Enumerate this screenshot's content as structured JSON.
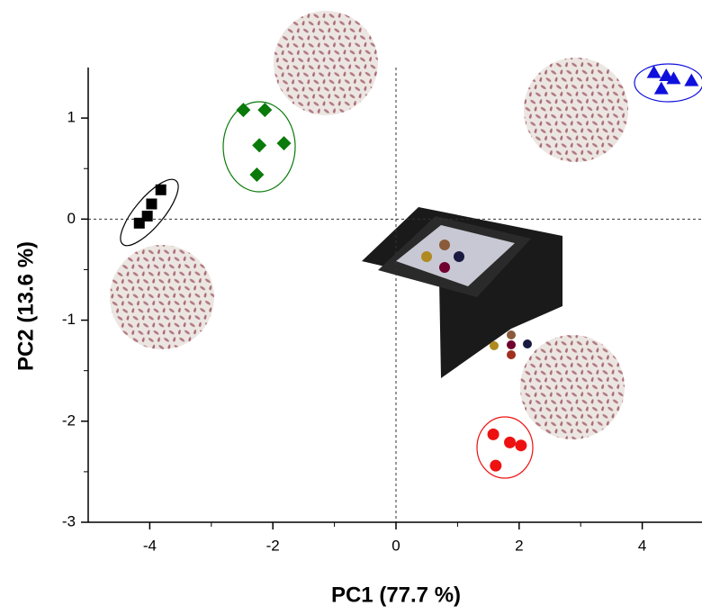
{
  "chart_data": {
    "type": "scatter",
    "x_label": "PC1 (77.7 %)",
    "y_label": "PC2 (13.6 %)",
    "xlim": [
      -5,
      5
    ],
    "ylim": [
      -3,
      1.5
    ],
    "xticks": [
      -4,
      -2,
      0,
      2,
      4
    ],
    "yticks": [
      -3,
      -2,
      -1,
      0,
      1
    ],
    "zero_lines": true,
    "series": [
      {
        "color": "#000000",
        "marker": "square",
        "x": [
          -3.82,
          -3.97,
          -4.04,
          -4.17
        ],
        "values": [
          0.29,
          0.15,
          0.03,
          -0.04
        ]
      },
      {
        "color": "#0a7a0a",
        "marker": "diamond",
        "x": [
          -2.48,
          -2.13,
          -2.22,
          -1.82,
          -2.26
        ],
        "values": [
          1.08,
          1.08,
          0.73,
          0.75,
          0.44
        ]
      },
      {
        "color": "#1010dd",
        "marker": "triangle",
        "x": [
          4.19,
          4.39,
          4.51,
          4.31,
          4.8
        ],
        "values": [
          1.45,
          1.42,
          1.39,
          1.29,
          1.37
        ]
      },
      {
        "color": "#ee1111",
        "marker": "circle",
        "x": [
          1.58,
          1.85,
          2.03,
          1.62
        ],
        "values": [
          -2.13,
          -2.21,
          -2.24,
          -2.44
        ]
      }
    ]
  }
}
